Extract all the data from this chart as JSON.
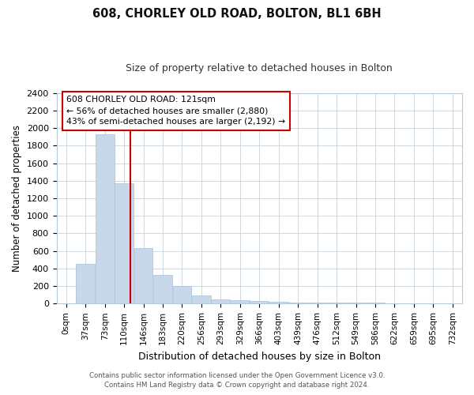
{
  "title": "608, CHORLEY OLD ROAD, BOLTON, BL1 6BH",
  "subtitle": "Size of property relative to detached houses in Bolton",
  "xlabel": "Distribution of detached houses by size in Bolton",
  "ylabel": "Number of detached properties",
  "bar_color": "#c8d8ea",
  "bar_edge_color": "#a8c0d8",
  "property_line_color": "#cc0000",
  "annotation_text": "608 CHORLEY OLD ROAD: 121sqm\n← 56% of detached houses are smaller (2,880)\n43% of semi-detached houses are larger (2,192) →",
  "annotation_box_color": "#ffffff",
  "annotation_box_edge_color": "#cc0000",
  "categories": [
    "0sqm",
    "37sqm",
    "73sqm",
    "110sqm",
    "146sqm",
    "183sqm",
    "220sqm",
    "256sqm",
    "293sqm",
    "329sqm",
    "366sqm",
    "403sqm",
    "439sqm",
    "476sqm",
    "512sqm",
    "549sqm",
    "586sqm",
    "622sqm",
    "659sqm",
    "695sqm",
    "732sqm"
  ],
  "values": [
    0,
    450,
    1930,
    1370,
    630,
    330,
    200,
    90,
    45,
    38,
    30,
    20,
    15,
    12,
    10,
    8,
    15,
    0,
    0,
    0,
    0
  ],
  "ylim": [
    0,
    2400
  ],
  "yticks": [
    0,
    200,
    400,
    600,
    800,
    1000,
    1200,
    1400,
    1600,
    1800,
    2000,
    2200,
    2400
  ],
  "footer_line1": "Contains HM Land Registry data © Crown copyright and database right 2024.",
  "footer_line2": "Contains public sector information licensed under the Open Government Licence v3.0.",
  "bg_color": "#ffffff",
  "grid_color": "#c8d4dc"
}
